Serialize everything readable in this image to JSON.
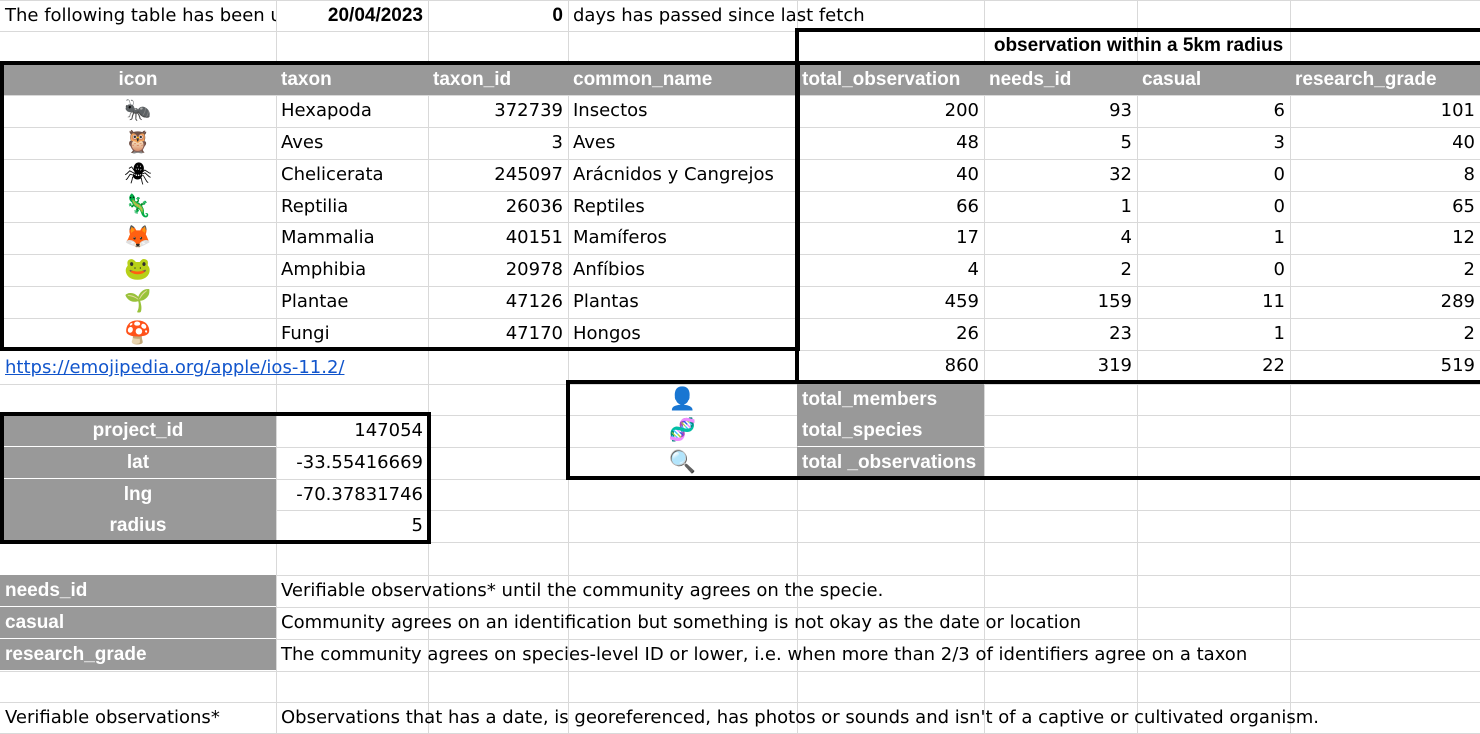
{
  "status": {
    "note": "The following table has been u",
    "date": "20/04/2023",
    "days": "0",
    "days_label": "days has passed since last fetch"
  },
  "obs_header": "observation within a 5km radius",
  "table": {
    "headers": [
      "icon",
      "taxon",
      "taxon_id",
      "common_name",
      "total_observation",
      "needs_id",
      "casual",
      "research_grade"
    ],
    "rows": [
      {
        "icon": "🐜",
        "taxon": "Hexapoda",
        "taxon_id": "372739",
        "common_name": "Insectos",
        "total": "200",
        "needs_id": "93",
        "casual": "6",
        "research": "101"
      },
      {
        "icon": "🦉",
        "taxon": "Aves",
        "taxon_id": "3",
        "common_name": "Aves",
        "total": "48",
        "needs_id": "5",
        "casual": "3",
        "research": "40"
      },
      {
        "icon": "🕷",
        "taxon": "Chelicerata",
        "taxon_id": "245097",
        "common_name": "Arácnidos y Cangrejos",
        "total": "40",
        "needs_id": "32",
        "casual": "0",
        "research": "8"
      },
      {
        "icon": "🦎",
        "taxon": "Reptilia",
        "taxon_id": "26036",
        "common_name": "Reptiles",
        "total": "66",
        "needs_id": "1",
        "casual": "0",
        "research": "65"
      },
      {
        "icon": "🦊",
        "taxon": "Mammalia",
        "taxon_id": "40151",
        "common_name": "Mamíferos",
        "total": "17",
        "needs_id": "4",
        "casual": "1",
        "research": "12"
      },
      {
        "icon": "🐸",
        "taxon": "Amphibia",
        "taxon_id": "20978",
        "common_name": "Anfíbios",
        "total": "4",
        "needs_id": "2",
        "casual": "0",
        "research": "2"
      },
      {
        "icon": "🌱",
        "taxon": "Plantae",
        "taxon_id": "47126",
        "common_name": "Plantas",
        "total": "459",
        "needs_id": "159",
        "casual": "11",
        "research": "289"
      },
      {
        "icon": "🍄",
        "taxon": "Fungi",
        "taxon_id": "47170",
        "common_name": "Hongos",
        "total": "26",
        "needs_id": "23",
        "casual": "1",
        "research": "2"
      }
    ],
    "totals": {
      "total": "860",
      "needs_id": "319",
      "casual": "22",
      "research": "519"
    }
  },
  "link": "https://emojipedia.org/apple/ios-11.2/",
  "project": [
    {
      "label": "project_id",
      "value": "147054"
    },
    {
      "label": "lat",
      "value": "-33.55416669"
    },
    {
      "label": "lng",
      "value": "-70.37831746"
    },
    {
      "label": "radius",
      "value": "5"
    }
  ],
  "stats": [
    {
      "icon": "👤",
      "label": "total_members"
    },
    {
      "icon": "🧬",
      "label": "total_species"
    },
    {
      "icon": "🔍",
      "label": "total _observations"
    }
  ],
  "legend": [
    {
      "term": "needs_id",
      "desc": "Verifiable observations* until the community agrees on the specie."
    },
    {
      "term": "casual",
      "desc": "Community agrees on an identification but something is not okay as the date or location"
    },
    {
      "term": "research_grade",
      "desc": "The community agrees on species-level ID or lower, i.e. when more than 2/3 of identifiers agree on a taxon"
    }
  ],
  "footnote": {
    "term": "Verifiable observations*",
    "desc": "Observations that has a date, is georeferenced, has photos or sounds and isn't of a captive or cultivated organism."
  }
}
